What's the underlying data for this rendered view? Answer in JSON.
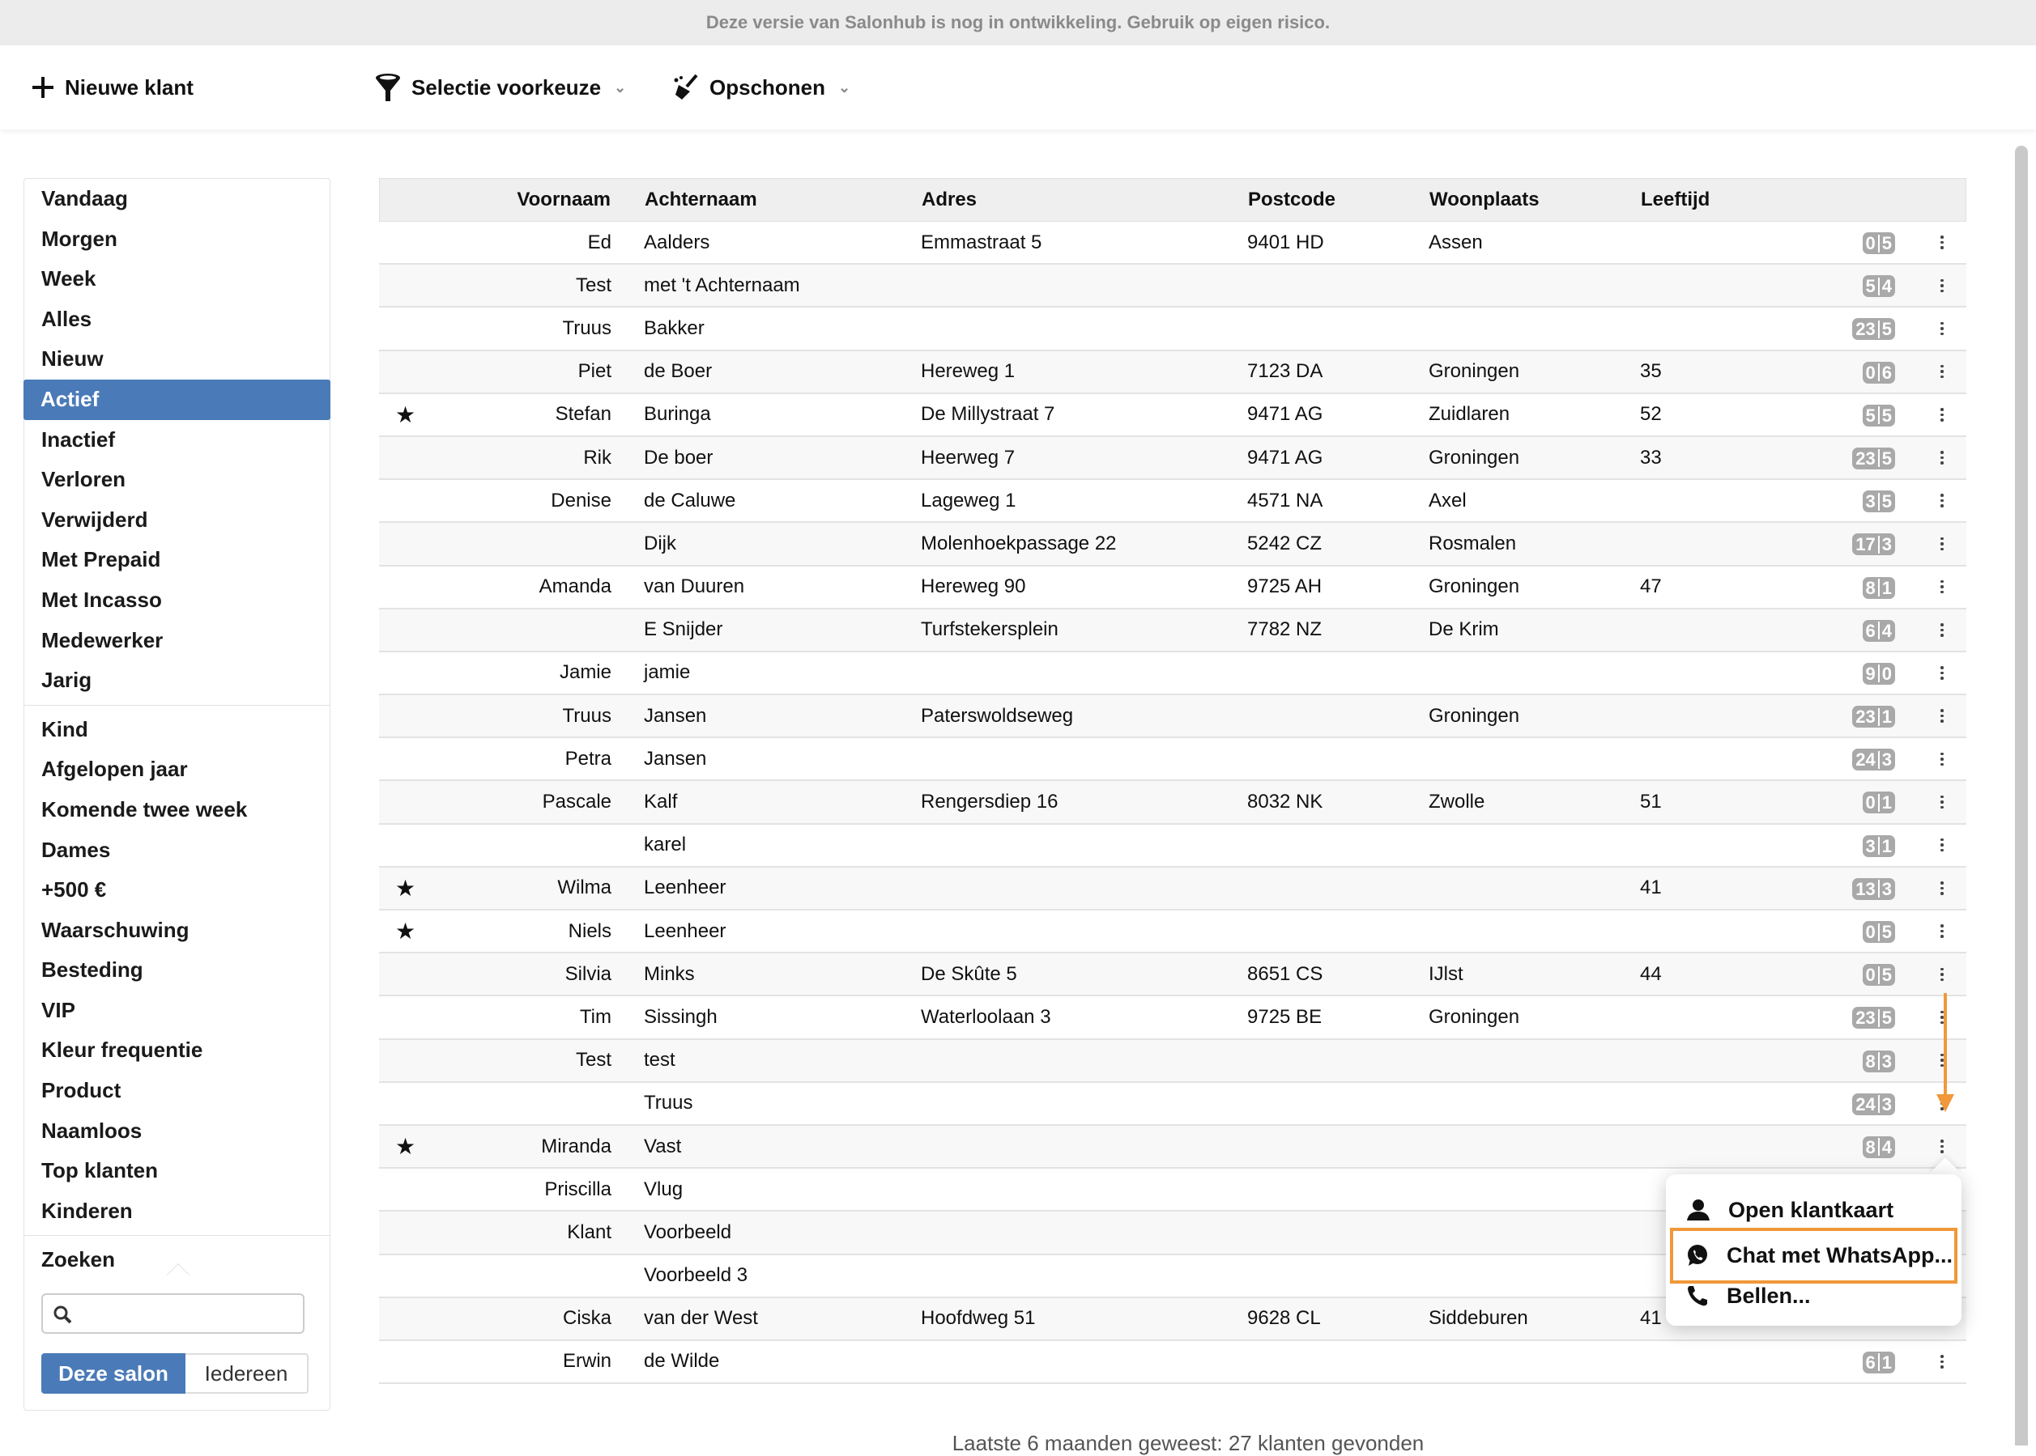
{
  "banner": "Deze versie van Salonhub is nog in ontwikkeling. Gebruik op eigen risico.",
  "toolbar": {
    "new_client": "Nieuwe klant",
    "selection": "Selectie voorkeuze",
    "cleanup": "Opschonen"
  },
  "sidebar": {
    "group1": [
      "Vandaag",
      "Morgen",
      "Week",
      "Alles",
      "Nieuw",
      "Actief",
      "Inactief",
      "Verloren",
      "Verwijderd",
      "Met Prepaid",
      "Met Incasso",
      "Medewerker",
      "Jarig"
    ],
    "group2": [
      "Kind",
      "Afgelopen jaar",
      "Komende twee week",
      "Dames",
      "+500 €",
      "Waarschuwing",
      "Besteding",
      "VIP",
      "Kleur frequentie",
      "Product",
      "Naamloos",
      "Top klanten",
      "Kinderen"
    ],
    "active": "Actief",
    "search_label": "Zoeken",
    "search_value": "",
    "scope_this": "Deze salon",
    "scope_all": "Iedereen"
  },
  "table": {
    "headers": {
      "first": "Voornaam",
      "last": "Achternaam",
      "address": "Adres",
      "postcode": "Postcode",
      "city": "Woonplaats",
      "age": "Leeftijd"
    },
    "rows": [
      {
        "star": false,
        "first": "Ed",
        "last": "Aalders",
        "address": "Emmastraat 5",
        "postcode": "9401 HD",
        "city": "Assen",
        "age": "",
        "badge": [
          "0",
          "5"
        ]
      },
      {
        "star": false,
        "first": "Test",
        "last": "met 't Achternaam",
        "address": "",
        "postcode": "",
        "city": "",
        "age": "",
        "badge": [
          "5",
          "4"
        ]
      },
      {
        "star": false,
        "first": "Truus",
        "last": "Bakker",
        "address": "",
        "postcode": "",
        "city": "",
        "age": "",
        "badge": [
          "23",
          "5"
        ]
      },
      {
        "star": false,
        "first": "Piet",
        "last": "de Boer",
        "address": "Hereweg 1",
        "postcode": "7123 DA",
        "city": "Groningen",
        "age": "35",
        "badge": [
          "0",
          "6"
        ]
      },
      {
        "star": true,
        "first": "Stefan",
        "last": "Buringa",
        "address": "De Millystraat 7",
        "postcode": "9471 AG",
        "city": "Zuidlaren",
        "age": "52",
        "badge": [
          "5",
          "5"
        ]
      },
      {
        "star": false,
        "first": "Rik",
        "last": "De boer",
        "address": "Heerweg 7",
        "postcode": "9471 AG",
        "city": "Groningen",
        "age": "33",
        "badge": [
          "23",
          "5"
        ]
      },
      {
        "star": false,
        "first": "Denise",
        "last": "de Caluwe",
        "address": "Lageweg 1",
        "postcode": "4571 NA",
        "city": "Axel",
        "age": "",
        "badge": [
          "3",
          "5"
        ]
      },
      {
        "star": false,
        "first": "",
        "last": "Dijk",
        "address": "Molenhoekpassage 22",
        "postcode": "5242 CZ",
        "city": "Rosmalen",
        "age": "",
        "badge": [
          "17",
          "3"
        ]
      },
      {
        "star": false,
        "first": "Amanda",
        "last": "van Duuren",
        "address": "Hereweg 90",
        "postcode": "9725 AH",
        "city": "Groningen",
        "age": "47",
        "badge": [
          "8",
          "1"
        ]
      },
      {
        "star": false,
        "first": "",
        "last": "E Snijder",
        "address": "Turfstekersplein",
        "postcode": "7782 NZ",
        "city": "De Krim",
        "age": "",
        "badge": [
          "6",
          "4"
        ]
      },
      {
        "star": false,
        "first": "Jamie",
        "last": "jamie",
        "address": "",
        "postcode": "",
        "city": "",
        "age": "",
        "badge": [
          "9",
          "0"
        ]
      },
      {
        "star": false,
        "first": "Truus",
        "last": "Jansen",
        "address": "Paterswoldseweg",
        "postcode": "",
        "city": "Groningen",
        "age": "",
        "badge": [
          "23",
          "1"
        ]
      },
      {
        "star": false,
        "first": "Petra",
        "last": "Jansen",
        "address": "",
        "postcode": "",
        "city": "",
        "age": "",
        "badge": [
          "24",
          "3"
        ]
      },
      {
        "star": false,
        "first": "Pascale",
        "last": "Kalf",
        "address": "Rengersdiep 16",
        "postcode": "8032 NK",
        "city": "Zwolle",
        "age": "51",
        "badge": [
          "0",
          "1"
        ]
      },
      {
        "star": false,
        "first": "",
        "last": "karel",
        "address": "",
        "postcode": "",
        "city": "",
        "age": "",
        "badge": [
          "3",
          "1"
        ]
      },
      {
        "star": true,
        "first": "Wilma",
        "last": "Leenheer",
        "address": "",
        "postcode": "",
        "city": "",
        "age": "41",
        "badge": [
          "13",
          "3"
        ]
      },
      {
        "star": true,
        "first": "Niels",
        "last": "Leenheer",
        "address": "",
        "postcode": "",
        "city": "",
        "age": "",
        "badge": [
          "0",
          "5"
        ]
      },
      {
        "star": false,
        "first": "Silvia",
        "last": "Minks",
        "address": "De Skûte 5",
        "postcode": "8651 CS",
        "city": "IJlst",
        "age": "44",
        "badge": [
          "0",
          "5"
        ]
      },
      {
        "star": false,
        "first": "Tim",
        "last": "Sissingh",
        "address": "Waterloolaan 3",
        "postcode": "9725 BE",
        "city": "Groningen",
        "age": "",
        "badge": [
          "23",
          "5"
        ]
      },
      {
        "star": false,
        "first": "Test",
        "last": "test",
        "address": "",
        "postcode": "",
        "city": "",
        "age": "",
        "badge": [
          "8",
          "3"
        ]
      },
      {
        "star": false,
        "first": "",
        "last": "Truus",
        "address": "",
        "postcode": "",
        "city": "",
        "age": "",
        "badge": [
          "24",
          "3"
        ]
      },
      {
        "star": true,
        "first": "Miranda",
        "last": "Vast",
        "address": "",
        "postcode": "",
        "city": "",
        "age": "",
        "badge": [
          "8",
          "4"
        ]
      },
      {
        "star": false,
        "first": "Priscilla",
        "last": "Vlug",
        "address": "",
        "postcode": "",
        "city": "",
        "age": "",
        "badge": null
      },
      {
        "star": false,
        "first": "Klant",
        "last": "Voorbeeld",
        "address": "",
        "postcode": "",
        "city": "",
        "age": "",
        "badge": null
      },
      {
        "star": false,
        "first": "",
        "last": "Voorbeeld 3",
        "address": "",
        "postcode": "",
        "city": "",
        "age": "",
        "badge": null
      },
      {
        "star": false,
        "first": "Ciska",
        "last": "van der West",
        "address": "Hoofdweg 51",
        "postcode": "9628 CL",
        "city": "Siddeburen",
        "age": "41",
        "badge": null
      },
      {
        "star": false,
        "first": "Erwin",
        "last": "de Wilde",
        "address": "",
        "postcode": "",
        "city": "",
        "age": "",
        "badge": [
          "6",
          "1"
        ]
      }
    ]
  },
  "star_symbol": "★",
  "context_menu": {
    "open": "Open klantkaart",
    "whatsapp": "Chat met WhatsApp...",
    "call": "Bellen..."
  },
  "footer": "Laatste 6 maanden geweest: 27 klanten gevonden",
  "colors": {
    "accent": "#4a7ab8",
    "highlight": "#f0983a",
    "badge": "#a9a9a9"
  }
}
